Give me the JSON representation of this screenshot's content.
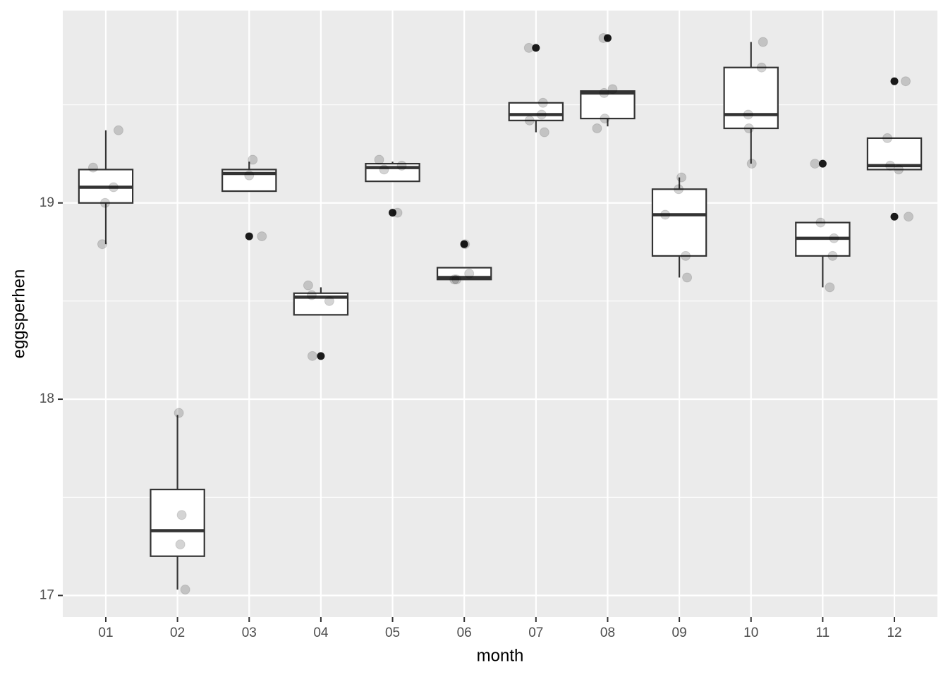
{
  "chart_data": {
    "type": "box",
    "x_label": "month",
    "y_label": "eggsperhen",
    "categories": [
      "01",
      "02",
      "03",
      "04",
      "05",
      "06",
      "07",
      "08",
      "09",
      "10",
      "11",
      "12"
    ],
    "boxes": [
      {
        "low": 18.79,
        "q1": 19.0,
        "median": 19.08,
        "q3": 19.17,
        "high": 19.37,
        "outliers": []
      },
      {
        "low": 17.03,
        "q1": 17.2,
        "median": 17.33,
        "q3": 17.54,
        "high": 17.92,
        "outliers": []
      },
      {
        "low": 19.06,
        "q1": 19.06,
        "median": 19.15,
        "q3": 19.17,
        "high": 19.21,
        "outliers": [
          18.83
        ]
      },
      {
        "low": 18.43,
        "q1": 18.43,
        "median": 18.52,
        "q3": 18.54,
        "high": 18.57,
        "outliers": [
          18.22
        ]
      },
      {
        "low": 19.11,
        "q1": 19.11,
        "median": 19.18,
        "q3": 19.2,
        "high": 19.21,
        "outliers": [
          18.95
        ]
      },
      {
        "low": 18.61,
        "q1": 18.61,
        "median": 18.62,
        "q3": 18.67,
        "high": 18.67,
        "outliers": [
          18.79
        ]
      },
      {
        "low": 19.36,
        "q1": 19.42,
        "median": 19.45,
        "q3": 19.51,
        "high": 19.51,
        "outliers": [
          19.79
        ]
      },
      {
        "low": 19.39,
        "q1": 19.43,
        "median": 19.56,
        "q3": 19.57,
        "high": 19.57,
        "outliers": [
          19.84
        ]
      },
      {
        "low": 18.62,
        "q1": 18.73,
        "median": 18.94,
        "q3": 19.07,
        "high": 19.13,
        "outliers": []
      },
      {
        "low": 19.2,
        "q1": 19.38,
        "median": 19.45,
        "q3": 19.69,
        "high": 19.82,
        "outliers": []
      },
      {
        "low": 18.57,
        "q1": 18.73,
        "median": 18.82,
        "q3": 18.9,
        "high": 18.9,
        "outliers": [
          19.2
        ]
      },
      {
        "low": 19.17,
        "q1": 19.17,
        "median": 19.19,
        "q3": 19.33,
        "high": 19.33,
        "outliers": [
          19.62,
          18.93
        ]
      }
    ],
    "points": [
      [
        19.18,
        19.37,
        19.08,
        19.0,
        18.79
      ],
      [
        17.93,
        17.41,
        17.26,
        17.03
      ],
      [
        19.22,
        19.14,
        18.83
      ],
      [
        18.58,
        18.53,
        18.5,
        18.22
      ],
      [
        19.22,
        19.19,
        19.17,
        18.95
      ],
      [
        18.64,
        18.61,
        18.79,
        18.61
      ],
      [
        19.79,
        19.51,
        19.45,
        19.42,
        19.36
      ],
      [
        19.84,
        19.58,
        19.56,
        19.43,
        19.38
      ],
      [
        19.13,
        19.07,
        18.94,
        18.73,
        18.62
      ],
      [
        19.82,
        19.69,
        19.45,
        19.38,
        19.2
      ],
      [
        19.2,
        18.9,
        18.82,
        18.73,
        18.57
      ],
      [
        19.62,
        19.33,
        19.19,
        19.17,
        18.93
      ]
    ],
    "ylim": [
      16.89,
      19.98
    ],
    "yticks": [
      17,
      18,
      19
    ],
    "grid": true
  }
}
